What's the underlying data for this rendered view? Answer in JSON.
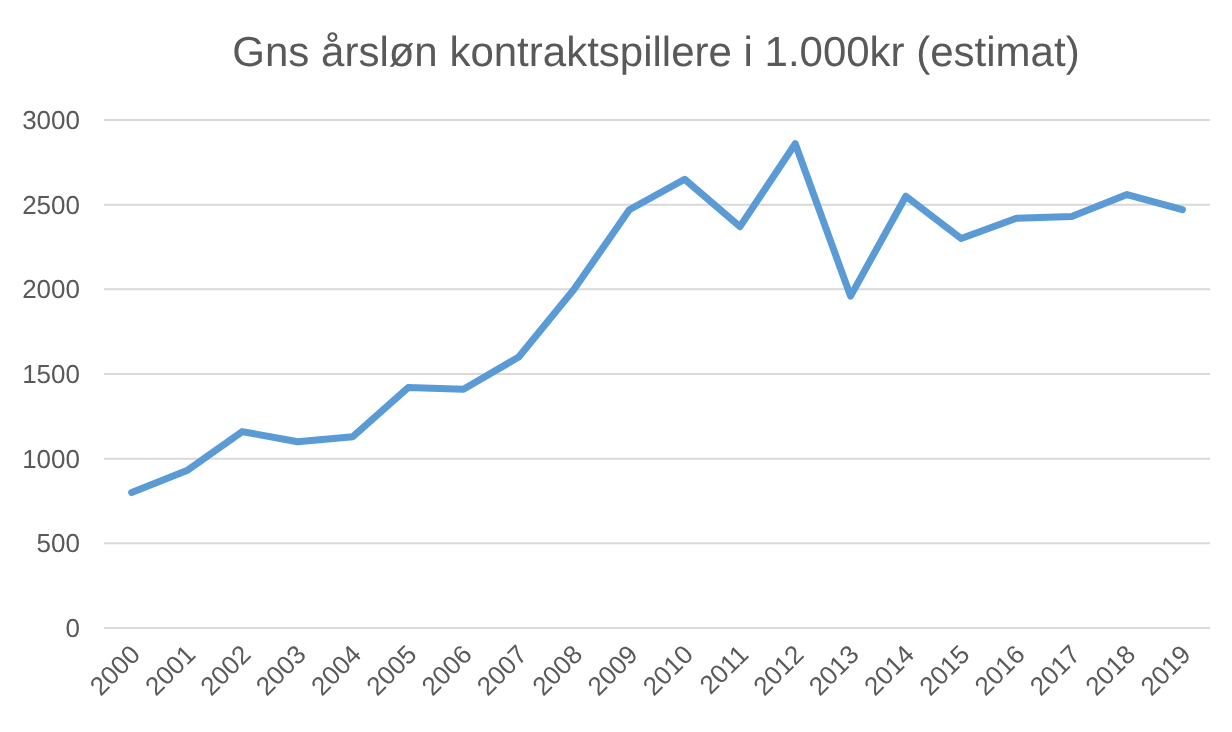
{
  "chart_data": {
    "type": "line",
    "title": "Gns årsløn kontraktspillere i 1.000kr (estimat)",
    "categories": [
      "2000",
      "2001",
      "2002",
      "2003",
      "2004",
      "2005",
      "2006",
      "2007",
      "2008",
      "2009",
      "2010",
      "2011",
      "2012",
      "2013",
      "2014",
      "2015",
      "2016",
      "2017",
      "2018",
      "2019"
    ],
    "series": [
      {
        "color": "#5b9bd5",
        "values": [
          800,
          930,
          1160,
          1100,
          1130,
          1420,
          1410,
          1600,
          2000,
          2470,
          2650,
          2370,
          2860,
          1960,
          2550,
          2300,
          2420,
          2430,
          2560,
          2470
        ]
      }
    ],
    "ylim": [
      0,
      3000
    ],
    "yticks": [
      0,
      500,
      1000,
      1500,
      2000,
      2500,
      3000
    ],
    "grid": "y",
    "marker": "none",
    "line_style": "solid"
  }
}
